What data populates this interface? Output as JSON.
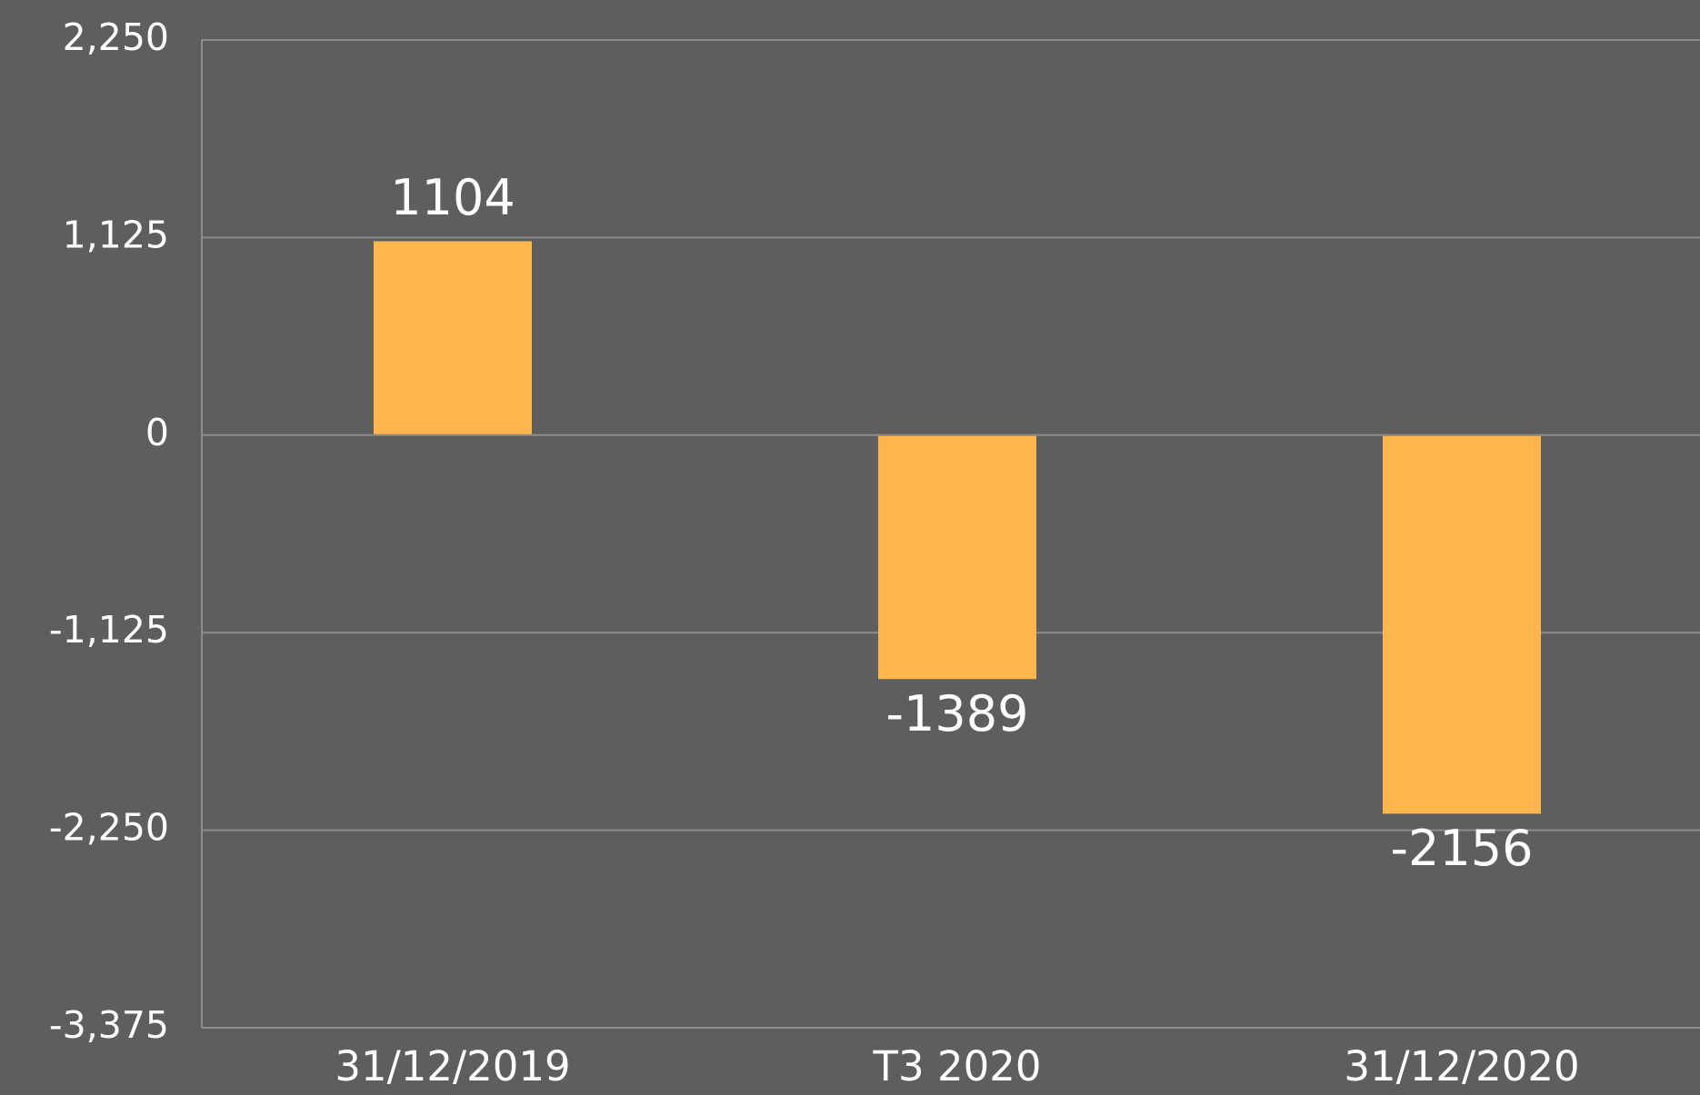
{
  "chart_data": {
    "type": "bar",
    "categories": [
      "31/12/2019",
      "T3 2020",
      "31/12/2020"
    ],
    "values": [
      1104,
      -1389,
      -2156
    ],
    "color": "#ffb74d",
    "ylim": [
      -3375,
      2250
    ],
    "yticks": [
      {
        "value": -3375,
        "label": "-3,375"
      },
      {
        "value": -2250,
        "label": "-2,250"
      },
      {
        "value": -1125,
        "label": "-1,125"
      },
      0,
      {
        "value": 1125,
        "label": "1,125"
      },
      {
        "value": 2250,
        "label": "2,250"
      }
    ],
    "grid": true
  }
}
